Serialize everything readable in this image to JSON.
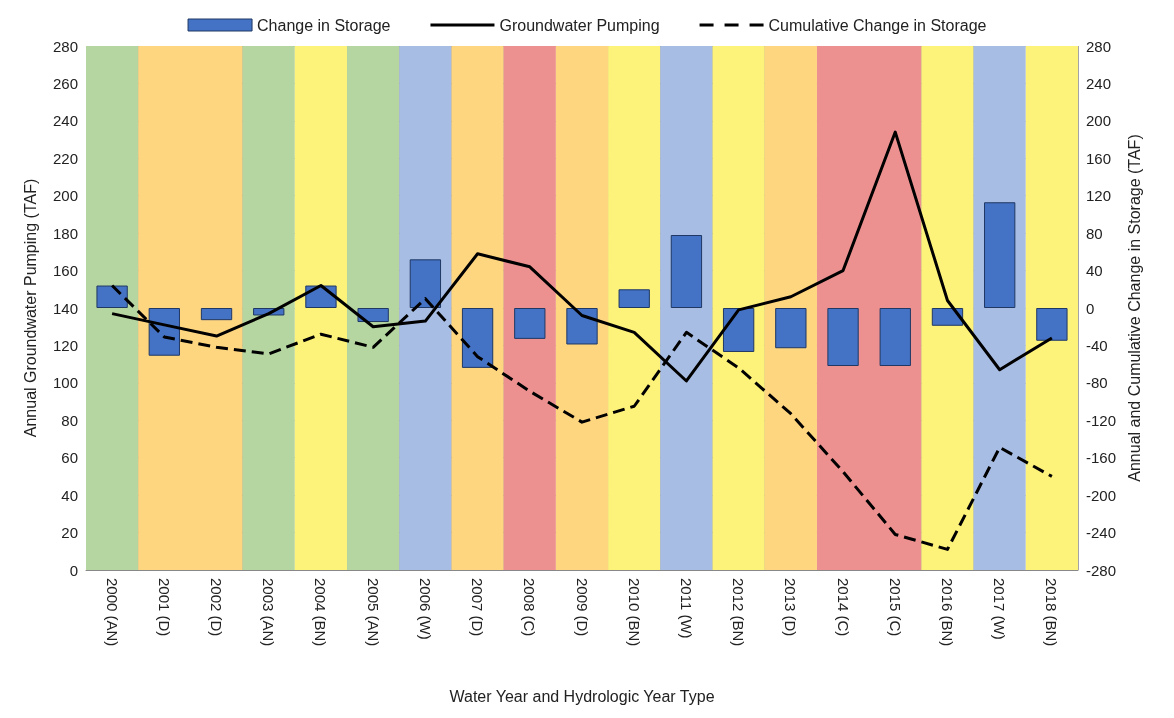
{
  "chart_data": {
    "type": "bar",
    "xlabel": "Water Year and Hydrologic Year Type",
    "ylabel": "Annual Groundwater Pumping (TAF)",
    "y2label": "Annual and Cumulative Change in Storage (TAF)",
    "categories": [
      "2000 (AN)",
      "2001 (D)",
      "2002 (D)",
      "2003 (AN)",
      "2004 (BN)",
      "2005 (AN)",
      "2006 (W)",
      "2007 (D)",
      "2008 (C)",
      "2009 (D)",
      "2010 (BN)",
      "2011 (W)",
      "2012 (BN)",
      "2013 (D)",
      "2014 (C)",
      "2015 (C)",
      "2016 (BN)",
      "2017 (W)",
      "2018 (BN)"
    ],
    "series": [
      {
        "name": "Change in Storage",
        "axis": "y2",
        "color": "#4472c4",
        "values": [
          24,
          -51,
          -13,
          -8,
          24,
          -15,
          52,
          -64,
          -33,
          -39,
          20,
          78,
          -47,
          -43,
          -62,
          -62,
          -19,
          113,
          -35
        ]
      },
      {
        "name": "Groundwater Pumping",
        "type": "line",
        "color": "#000000",
        "line_style": "solid",
        "values": [
          137,
          131,
          125,
          137,
          152,
          130,
          133,
          169,
          162,
          136,
          127,
          101,
          139,
          146,
          160,
          234,
          144,
          107,
          124
        ]
      },
      {
        "name": "Cumulative Change in Storage",
        "type": "line",
        "axis": "y2",
        "color": "#000000",
        "line_style": "dashed",
        "values": [
          24,
          -31,
          -42,
          -49,
          -28,
          -42,
          10,
          -52,
          -89,
          -122,
          -105,
          -26,
          -64,
          -113,
          -175,
          -242,
          -258,
          -149,
          -180
        ]
      }
    ],
    "bands": [
      {
        "axis": "x",
        "from": "2000 (AN)",
        "to": "2000 (AN)",
        "color": "#b5d6a0"
      },
      {
        "axis": "x",
        "from": "2001 (D)",
        "to": "2002 (D)",
        "color": "#ffd680"
      },
      {
        "axis": "x",
        "from": "2003 (AN)",
        "to": "2003 (AN)",
        "color": "#b5d6a0"
      },
      {
        "axis": "x",
        "from": "2004 (BN)",
        "to": "2004 (BN)",
        "color": "#fdf27a"
      },
      {
        "axis": "x",
        "from": "2005 (AN)",
        "to": "2005 (AN)",
        "color": "#b5d6a0"
      },
      {
        "axis": "x",
        "from": "2006 (W)",
        "to": "2006 (W)",
        "color": "#a8bde3"
      },
      {
        "axis": "x",
        "from": "2007 (D)",
        "to": "2007 (D)",
        "color": "#ffd680"
      },
      {
        "axis": "x",
        "from": "2008 (C)",
        "to": "2008 (C)",
        "color": "#ec9190"
      },
      {
        "axis": "x",
        "from": "2009 (D)",
        "to": "2009 (D)",
        "color": "#ffd680"
      },
      {
        "axis": "x",
        "from": "2010 (BN)",
        "to": "2010 (BN)",
        "color": "#fdf27a"
      },
      {
        "axis": "x",
        "from": "2011 (W)",
        "to": "2011 (W)",
        "color": "#a8bde3"
      },
      {
        "axis": "x",
        "from": "2012 (BN)",
        "to": "2012 (BN)",
        "color": "#fdf27a"
      },
      {
        "axis": "x",
        "from": "2013 (D)",
        "to": "2013 (D)",
        "color": "#ffd680"
      },
      {
        "axis": "x",
        "from": "2014 (C)",
        "to": "2015 (C)",
        "color": "#ec9190"
      },
      {
        "axis": "x",
        "from": "2016 (BN)",
        "to": "2016 (BN)",
        "color": "#fdf27a"
      },
      {
        "axis": "x",
        "from": "2017 (W)",
        "to": "2017 (W)",
        "color": "#a8bde3"
      },
      {
        "axis": "x",
        "from": "2018 (BN)",
        "to": "2018 (BN)",
        "color": "#fdf27a"
      }
    ],
    "ylim": [
      0,
      280
    ],
    "yticks": [
      0,
      20,
      40,
      60,
      80,
      100,
      120,
      140,
      160,
      180,
      200,
      220,
      240,
      260,
      280
    ],
    "y2lim": [
      -280,
      280
    ],
    "y2ticks": [
      -280,
      -240,
      -200,
      -160,
      -120,
      -80,
      -40,
      0,
      40,
      80,
      120,
      160,
      200,
      240,
      280
    ],
    "grid": true,
    "legend": "top",
    "marker": "none"
  }
}
